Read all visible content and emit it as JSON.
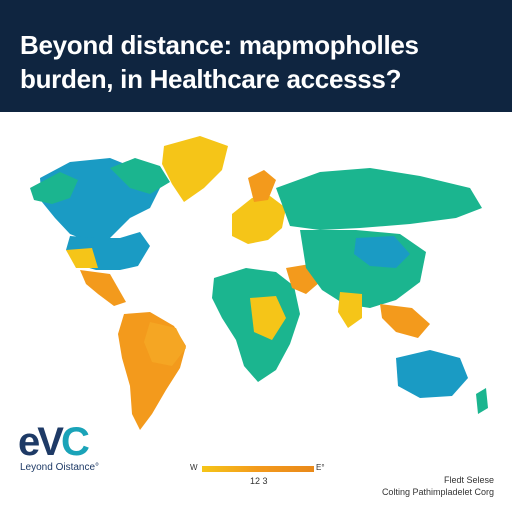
{
  "header": {
    "title_line1": "Beyond distance: mapmopholles",
    "title_line2": "burden, in Healthcare accesss?"
  },
  "colors": {
    "header_bg": "#0f2540",
    "teal": "#1bb58f",
    "blue": "#1a9bc4",
    "yellow": "#f5c518",
    "orange": "#f39a1c"
  },
  "map": {
    "ocean_color": "#ffffff",
    "regions": [
      {
        "name": "north-america",
        "color": "#1a9bc4"
      },
      {
        "name": "greenland",
        "color": "#f5c518"
      },
      {
        "name": "usa",
        "color": "#1a9bc4"
      },
      {
        "name": "central-america",
        "color": "#f39a1c"
      },
      {
        "name": "south-america",
        "color": "#f39a1c"
      },
      {
        "name": "europe",
        "color": "#f5c518"
      },
      {
        "name": "africa",
        "color": "#1bb58f"
      },
      {
        "name": "russia",
        "color": "#1bb58f"
      },
      {
        "name": "asia",
        "color": "#1bb58f"
      },
      {
        "name": "australia",
        "color": "#1a9bc4"
      }
    ]
  },
  "logo": {
    "mark_part1": "eV",
    "mark_part2": "C",
    "subtitle": "Leyond Oistance°"
  },
  "legend": {
    "min_label": "W",
    "max_label": "E°",
    "center_label": "12 3"
  },
  "source": {
    "line1": "Fledt Selese",
    "line2": "Colting Pathimpladelet Corg"
  }
}
